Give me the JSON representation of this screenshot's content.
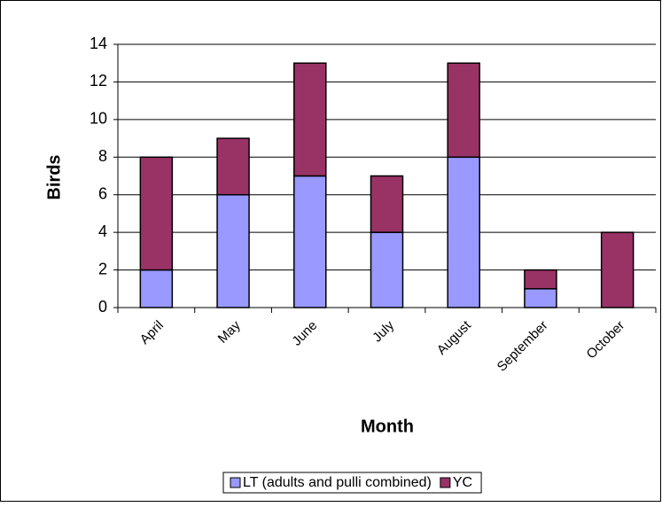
{
  "chart_data": {
    "type": "stacked_bar",
    "x_label": "Month",
    "y_label": "Birds",
    "categories": [
      "April",
      "May",
      "June",
      "July",
      "August",
      "September",
      "October"
    ],
    "series": [
      {
        "name": "LT (adults and pulli combined)",
        "color": "#9999ff",
        "values": [
          2,
          6,
          7,
          4,
          8,
          1,
          0
        ]
      },
      {
        "name": "YC",
        "color": "#993366",
        "values": [
          6,
          3,
          6,
          3,
          5,
          1,
          4
        ]
      }
    ],
    "ylim": [
      0,
      14
    ],
    "yticks": [
      0,
      2,
      4,
      6,
      8,
      10,
      12,
      14
    ],
    "grid": true,
    "legend": "bottom"
  }
}
